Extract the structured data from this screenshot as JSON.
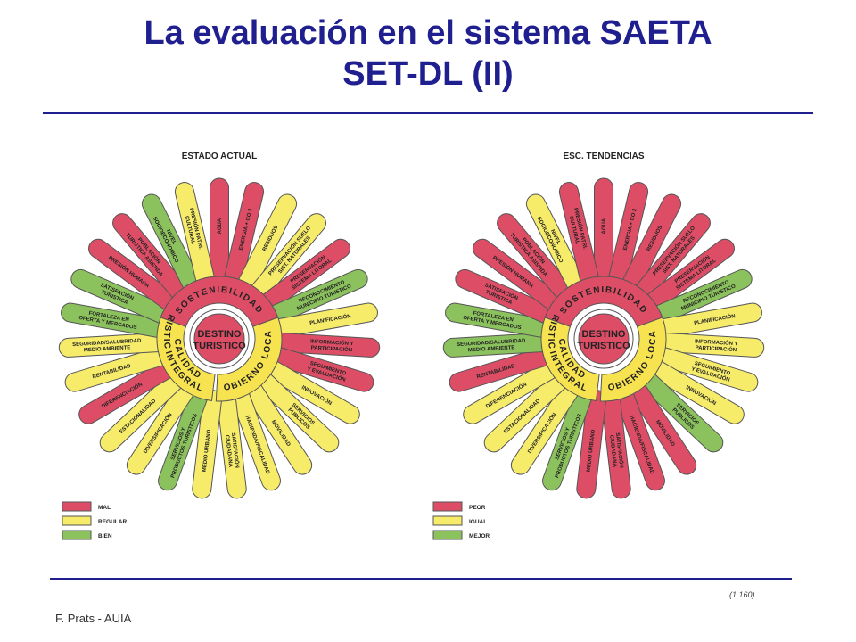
{
  "slide": {
    "title_line1": "La evaluación en el sistema SAETA",
    "title_line2": "SET-DL (II)",
    "footer": "F. Prats - AUIA",
    "slide_ref": "(1.160)"
  },
  "colors": {
    "red": "#dd4e66",
    "yellow": "#f6ec6a",
    "green": "#8cc25e",
    "ring": "#f7e34f",
    "outline": "#555555"
  },
  "center": {
    "line1": "DESTINO",
    "line2": "TURISTICO"
  },
  "rings": {
    "sostenibilidad": "SOSTENIBILIDAD",
    "gobierno": "GOBIERNO LOCAL",
    "calidad1": "CALIDAD",
    "calidad2": "INTEGRAL",
    "turistica": "TURISTICA"
  },
  "petals": [
    "AGUA",
    "ENERGIA + CO 2",
    "RESIDUOS",
    "PRESERVACIÓN SUELO SIST. NATURALES",
    "PRESERVACIÓN SISTEMA LITORAL",
    "RECONOCIMIENTO MUNICIPIO TURISTICO",
    "PLANIFICACIÓN",
    "INFORMACIÓN Y PARTICIPACIÓN",
    "SEGUIMIENTO Y EVALUACIÓN",
    "INNOVACIÓN",
    "SERVICIOS PUBLICOS",
    "MOVILIDAD",
    "HACIENDA/FISCALIDAD",
    "SATISFACIÓN CIUDADANA",
    "MEDIO URBANO",
    "SERVICIOS Y PRODUCTOS TURISTICOS",
    "DIVERSIFICACIÓN",
    "ESTACIONALIDAD",
    "DIFERENCIACIÓN",
    "RENTABILIDAD",
    "SEGURIDAD/SALUBRIDAD MEDIO AMBIENTE",
    "FORTALEZA EN OFERTA Y MERCADOS",
    "SATISFACIÓN TURISTICA",
    "PRESIÓN HUMANA",
    "POBLACIÓN TURISTICA ASISTIDA",
    "NIVEL SOCIOECONOMICO",
    "PRESIÓN PATRI. CULTURAL"
  ],
  "diagrams": [
    {
      "heading": "ESTADO ACTUAL",
      "legend": [
        {
          "label": "MAL",
          "color": "red"
        },
        {
          "label": "REGULAR",
          "color": "yellow"
        },
        {
          "label": "BIEN",
          "color": "green"
        }
      ],
      "states": [
        "red",
        "red",
        "yellow",
        "yellow",
        "red",
        "green",
        "yellow",
        "red",
        "red",
        "yellow",
        "yellow",
        "yellow",
        "yellow",
        "yellow",
        "yellow",
        "green",
        "yellow",
        "yellow",
        "red",
        "yellow",
        "yellow",
        "green",
        "green",
        "red",
        "red",
        "green",
        "yellow"
      ]
    },
    {
      "heading": "ESC. TENDENCIAS",
      "legend": [
        {
          "label": "PEOR",
          "color": "red"
        },
        {
          "label": "IGUAL",
          "color": "yellow"
        },
        {
          "label": "MEJOR",
          "color": "green"
        }
      ],
      "states": [
        "red",
        "red",
        "red",
        "red",
        "red",
        "green",
        "yellow",
        "yellow",
        "yellow",
        "yellow",
        "green",
        "red",
        "red",
        "red",
        "red",
        "green",
        "yellow",
        "yellow",
        "yellow",
        "red",
        "green",
        "green",
        "red",
        "red",
        "red",
        "yellow",
        "red"
      ]
    }
  ]
}
